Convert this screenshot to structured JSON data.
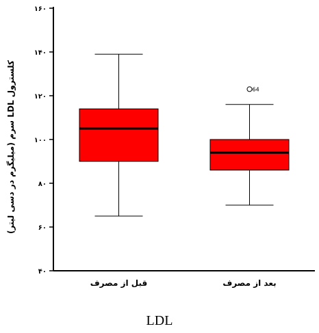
{
  "chart_data": {
    "type": "box",
    "title": "",
    "ylabel": "کلسترول LDL سرم (میلیگرم در دسی لیتر)",
    "xlabel": "",
    "ylim": [
      40,
      160
    ],
    "yticks": [
      40,
      60,
      80,
      100,
      120,
      140,
      160
    ],
    "ytick_labels": [
      "۴۰",
      "۶۰",
      "۸۰",
      "۱۰۰",
      "۱۲۰",
      "۱۴۰",
      "۱۶۰"
    ],
    "categories": [
      "قبل از مصرف",
      "بعد از مصرف"
    ],
    "boxes": [
      {
        "category": "قبل از مصرف",
        "whisker_low": 65,
        "q1": 90,
        "median": 105,
        "q3": 114,
        "whisker_high": 139,
        "outliers": []
      },
      {
        "category": "بعد از مصرف",
        "whisker_low": 70,
        "q1": 86,
        "median": 94,
        "q3": 100,
        "whisker_high": 116,
        "outliers": [
          {
            "value": 123,
            "label": "64"
          }
        ]
      }
    ],
    "box_color": "#ff0000",
    "grid": false
  },
  "caption": "LDL"
}
